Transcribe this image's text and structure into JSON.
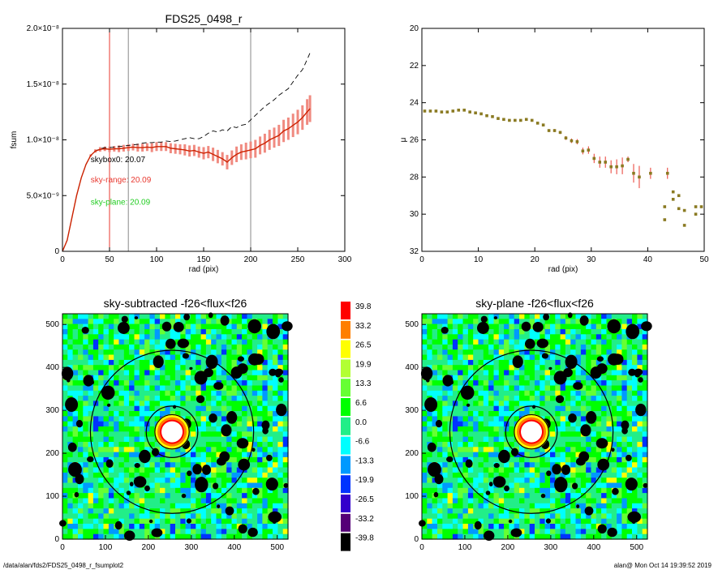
{
  "footer": {
    "left": "/data/alan/fds2/FDS25_0498_r_fsumplot2",
    "right": "alan@  Mon Oct 14 19:39:52 2019"
  },
  "chart_data": [
    {
      "type": "line",
      "title": "FDS25_0498_r",
      "xlabel": "rad (pix)",
      "ylabel": "fsum",
      "xlim": [
        0,
        300
      ],
      "ylim": [
        0,
        2e-08
      ],
      "xticks": [
        0,
        50,
        100,
        150,
        200,
        250,
        300
      ],
      "yticks": [
        {
          "v": 0,
          "label": "0"
        },
        {
          "v": 5e-09,
          "label": "5.0×10⁻⁹"
        },
        {
          "v": 1e-08,
          "label": "1.0×10⁻⁸"
        },
        {
          "v": 1.5e-08,
          "label": "1.5×10⁻⁸"
        },
        {
          "v": 2e-08,
          "label": "2.0×10⁻⁸"
        }
      ],
      "vlines": [
        {
          "x": 50,
          "color": "#e8382f"
        },
        {
          "x": 70,
          "color": "#888888"
        },
        {
          "x": 200,
          "color": "#888888"
        }
      ],
      "annotations": [
        {
          "text": "skybox0: 20.07",
          "x": 30,
          "y": 8e-09,
          "color": "#000000"
        },
        {
          "text": "sky-range: 20.09",
          "x": 30,
          "y": 6.2e-09,
          "color": "#e8382f"
        },
        {
          "text": "sky-plane: 20.09",
          "x": 30,
          "y": 4.2e-09,
          "color": "#22cc22"
        }
      ],
      "series": [
        {
          "style": "dashed",
          "color": "#000000",
          "x": [
            0,
            5,
            10,
            15,
            20,
            25,
            30,
            35,
            40,
            45,
            50,
            55,
            60,
            65,
            70,
            75,
            80,
            85,
            90,
            95,
            100,
            105,
            110,
            115,
            120,
            125,
            130,
            135,
            140,
            145,
            150,
            155,
            160,
            165,
            170,
            175,
            180,
            185,
            190,
            195,
            200,
            205,
            210,
            215,
            220,
            225,
            230,
            235,
            240,
            245,
            250,
            255,
            260,
            263
          ],
          "y": [
            0,
            1e-09,
            3e-09,
            5e-09,
            6.6e-09,
            7.8e-09,
            8.6e-09,
            9e-09,
            9.2e-09,
            9.3e-09,
            9.3e-09,
            9.35e-09,
            9.4e-09,
            9.45e-09,
            9.5e-09,
            9.55e-09,
            9.6e-09,
            9.7e-09,
            9.75e-09,
            9.75e-09,
            9.8e-09,
            9.8e-09,
            9.9e-09,
            9.85e-09,
            9.9e-09,
            1e-08,
            1.01e-08,
            1.02e-08,
            1.01e-08,
            1.01e-08,
            1.03e-08,
            1.06e-08,
            1.08e-08,
            1.07e-08,
            1.09e-08,
            1.08e-08,
            1.12e-08,
            1.11e-08,
            1.13e-08,
            1.14e-08,
            1.18e-08,
            1.22e-08,
            1.26e-08,
            1.3e-08,
            1.33e-08,
            1.36e-08,
            1.4e-08,
            1.43e-08,
            1.46e-08,
            1.52e-08,
            1.58e-08,
            1.63e-08,
            1.72e-08,
            1.78e-08
          ]
        },
        {
          "style": "solid",
          "color": "#cc2200",
          "errcolor": "#f08a80",
          "x": [
            0,
            5,
            10,
            15,
            20,
            25,
            30,
            35,
            40,
            45,
            50,
            55,
            60,
            65,
            70,
            75,
            80,
            85,
            90,
            95,
            100,
            105,
            110,
            115,
            120,
            125,
            130,
            135,
            140,
            145,
            150,
            155,
            160,
            165,
            170,
            175,
            180,
            185,
            190,
            195,
            200,
            205,
            210,
            215,
            220,
            225,
            230,
            235,
            240,
            245,
            250,
            255,
            260,
            263
          ],
          "y": [
            0,
            1e-09,
            3e-09,
            5e-09,
            6.6e-09,
            7.8e-09,
            8.6e-09,
            9e-09,
            9.15e-09,
            9.2e-09,
            9.15e-09,
            9.2e-09,
            9.2e-09,
            9.25e-09,
            9.3e-09,
            9.35e-09,
            9.3e-09,
            9.3e-09,
            9.35e-09,
            9.3e-09,
            9.4e-09,
            9.4e-09,
            9.4e-09,
            9.25e-09,
            9.2e-09,
            9.15e-09,
            9.1e-09,
            9e-09,
            9.05e-09,
            8.9e-09,
            8.8e-09,
            8.9e-09,
            8.7e-09,
            8.5e-09,
            8.3e-09,
            8e-09,
            8.4e-09,
            8.7e-09,
            8.9e-09,
            9e-09,
            9.1e-09,
            9.2e-09,
            9.5e-09,
            9.7e-09,
            1e-08,
            1.02e-08,
            1.04e-08,
            1.08e-08,
            1.1e-08,
            1.13e-08,
            1.16e-08,
            1.2e-08,
            1.25e-08,
            1.28e-08
          ],
          "err": [
            0,
            0,
            0,
            0,
            0,
            0,
            1e-10,
            1.5e-10,
            2e-10,
            2e-10,
            2.5e-10,
            2.5e-10,
            3e-10,
            3e-10,
            3e-10,
            3e-10,
            3.5e-10,
            3.5e-10,
            3.5e-10,
            4e-10,
            4e-10,
            4e-10,
            4e-10,
            4.5e-10,
            4.5e-10,
            4.5e-10,
            5e-10,
            5e-10,
            5e-10,
            5e-10,
            5.5e-10,
            5.5e-10,
            6e-10,
            6e-10,
            6e-10,
            6.5e-10,
            6.5e-10,
            7e-10,
            7e-10,
            7.5e-10,
            7.5e-10,
            8e-10,
            8e-10,
            8.5e-10,
            9e-10,
            9e-10,
            9.5e-10,
            1e-09,
            1e-09,
            1.05e-09,
            1.1e-09,
            1.1e-09,
            1.15e-09,
            1.2e-09
          ]
        }
      ]
    },
    {
      "type": "scatter",
      "xlabel": "rad (pix)",
      "ylabel": "μ",
      "xlim": [
        0,
        50
      ],
      "ylim": [
        32,
        20
      ],
      "xticks": [
        0,
        10,
        20,
        30,
        40,
        50
      ],
      "yticks": [
        20,
        22,
        24,
        26,
        28,
        30,
        32
      ],
      "points": [
        {
          "x": 0.5,
          "y": 24.45,
          "err": 0.02
        },
        {
          "x": 1.5,
          "y": 24.45,
          "err": 0.02
        },
        {
          "x": 2.5,
          "y": 24.45,
          "err": 0.02
        },
        {
          "x": 3.5,
          "y": 24.5,
          "err": 0.02
        },
        {
          "x": 4.5,
          "y": 24.5,
          "err": 0.02
        },
        {
          "x": 5.5,
          "y": 24.45,
          "err": 0.02
        },
        {
          "x": 6.5,
          "y": 24.4,
          "err": 0.02
        },
        {
          "x": 7.5,
          "y": 24.4,
          "err": 0.02
        },
        {
          "x": 8.5,
          "y": 24.5,
          "err": 0.03
        },
        {
          "x": 9.5,
          "y": 24.55,
          "err": 0.03
        },
        {
          "x": 10.5,
          "y": 24.6,
          "err": 0.03
        },
        {
          "x": 11.5,
          "y": 24.7,
          "err": 0.03
        },
        {
          "x": 12.5,
          "y": 24.75,
          "err": 0.03
        },
        {
          "x": 13.5,
          "y": 24.85,
          "err": 0.03
        },
        {
          "x": 14.5,
          "y": 24.9,
          "err": 0.03
        },
        {
          "x": 15.5,
          "y": 24.95,
          "err": 0.04
        },
        {
          "x": 16.5,
          "y": 24.95,
          "err": 0.04
        },
        {
          "x": 17.5,
          "y": 24.95,
          "err": 0.04
        },
        {
          "x": 18.5,
          "y": 24.9,
          "err": 0.04
        },
        {
          "x": 19.5,
          "y": 24.95,
          "err": 0.05
        },
        {
          "x": 20.5,
          "y": 25.1,
          "err": 0.05
        },
        {
          "x": 21.5,
          "y": 25.2,
          "err": 0.06
        },
        {
          "x": 22.5,
          "y": 25.5,
          "err": 0.07
        },
        {
          "x": 23.5,
          "y": 25.5,
          "err": 0.08
        },
        {
          "x": 24.5,
          "y": 25.6,
          "err": 0.08
        },
        {
          "x": 25.5,
          "y": 25.9,
          "err": 0.1
        },
        {
          "x": 26.5,
          "y": 26.05,
          "err": 0.12
        },
        {
          "x": 27.5,
          "y": 26.1,
          "err": 0.14
        },
        {
          "x": 28.5,
          "y": 26.6,
          "err": 0.18
        },
        {
          "x": 29.5,
          "y": 26.55,
          "err": 0.2
        },
        {
          "x": 30.5,
          "y": 27.0,
          "err": 0.25
        },
        {
          "x": 31.5,
          "y": 27.2,
          "err": 0.3
        },
        {
          "x": 32.5,
          "y": 27.2,
          "err": 0.3
        },
        {
          "x": 33.5,
          "y": 27.45,
          "err": 0.35
        },
        {
          "x": 34.5,
          "y": 27.45,
          "err": 0.4
        },
        {
          "x": 35.5,
          "y": 27.4,
          "err": 0.45
        },
        {
          "x": 36.5,
          "y": 27.05,
          "err": 0.15
        },
        {
          "x": 37.5,
          "y": 27.8,
          "err": 0.5
        },
        {
          "x": 38.5,
          "y": 28.0,
          "err": 0.6
        },
        {
          "x": 40.5,
          "y": 27.8,
          "err": 0.3
        },
        {
          "x": 43.5,
          "y": 27.8,
          "err": 0.3
        },
        {
          "x": 43.0,
          "y": 29.6,
          "err": 0
        },
        {
          "x": 43.0,
          "y": 30.3,
          "err": 0
        },
        {
          "x": 44.5,
          "y": 28.8,
          "err": 0
        },
        {
          "x": 44.5,
          "y": 29.2,
          "err": 0
        },
        {
          "x": 45.5,
          "y": 29.0,
          "err": 0
        },
        {
          "x": 45.5,
          "y": 29.7,
          "err": 0
        },
        {
          "x": 46.5,
          "y": 29.8,
          "err": 0
        },
        {
          "x": 46.5,
          "y": 30.6,
          "err": 0
        },
        {
          "x": 48.5,
          "y": 29.6,
          "err": 0
        },
        {
          "x": 49.5,
          "y": 29.6,
          "err": 0
        },
        {
          "x": 48.5,
          "y": 30.0,
          "err": 0
        }
      ]
    },
    {
      "type": "heatmap",
      "title": "sky-subtracted -f26<flux<f26",
      "xlim": [
        0,
        525
      ],
      "ylim": [
        0,
        525
      ],
      "xticks": [
        0,
        100,
        200,
        300,
        400,
        500
      ],
      "yticks": [
        0,
        100,
        200,
        300,
        400,
        500
      ],
      "center": [
        255,
        250
      ],
      "circles_r": [
        190,
        60,
        40
      ]
    },
    {
      "type": "heatmap",
      "title": "sky-plane -f26<flux<f26",
      "xlim": [
        0,
        525
      ],
      "ylim": [
        0,
        525
      ],
      "xticks": [
        0,
        100,
        200,
        300,
        400,
        500
      ],
      "yticks": [
        0,
        100,
        200,
        300,
        400,
        500
      ],
      "center": [
        255,
        250
      ],
      "circles_r": [
        190,
        60,
        40
      ]
    },
    {
      "type": "colorbar",
      "levels": [
        {
          "label": "39.8",
          "color": "#ff0000"
        },
        {
          "label": "33.2",
          "color": "#ff7f00"
        },
        {
          "label": "26.5",
          "color": "#ffff00"
        },
        {
          "label": "19.9",
          "color": "#b2ff33"
        },
        {
          "label": "13.3",
          "color": "#66ff33"
        },
        {
          "label": "6.6",
          "color": "#00ff00"
        },
        {
          "label": "0.0",
          "color": "#22ee88"
        },
        {
          "label": "-6.6",
          "color": "#00ffff"
        },
        {
          "label": "-13.3",
          "color": "#0099ff"
        },
        {
          "label": "-19.9",
          "color": "#0033ff"
        },
        {
          "label": "-26.5",
          "color": "#3300cc"
        },
        {
          "label": "-33.2",
          "color": "#550077"
        },
        {
          "label": "-39.8",
          "color": "#000000"
        }
      ]
    }
  ]
}
